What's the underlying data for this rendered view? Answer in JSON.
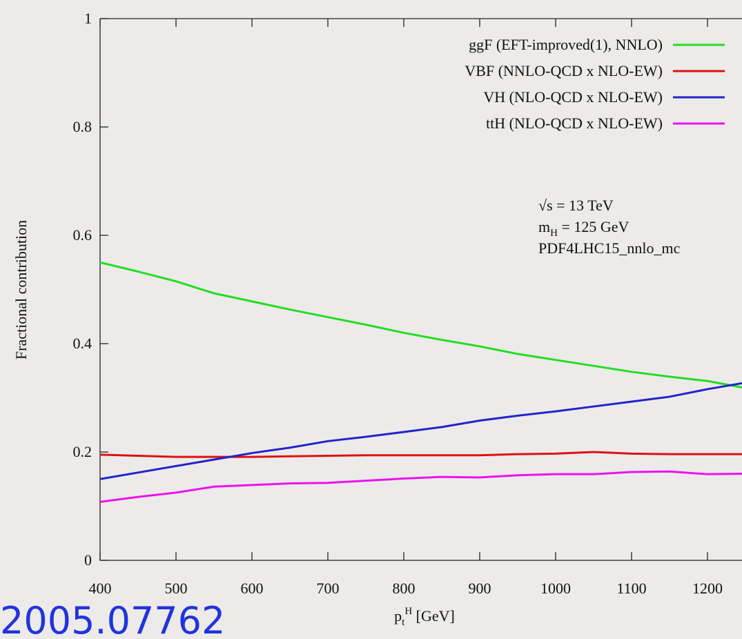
{
  "chart_data": {
    "type": "line",
    "x": [
      400,
      450,
      500,
      550,
      600,
      650,
      700,
      750,
      800,
      850,
      900,
      950,
      1000,
      1050,
      1100,
      1150,
      1200,
      1250
    ],
    "series": [
      {
        "name": "ggF (EFT-improved(1), NNLO)",
        "color": "#22dd22",
        "values": [
          0.55,
          0.533,
          0.515,
          0.493,
          0.478,
          0.463,
          0.449,
          0.435,
          0.42,
          0.407,
          0.395,
          0.381,
          0.37,
          0.359,
          0.348,
          0.339,
          0.331,
          0.318
        ]
      },
      {
        "name": "VBF (NNLO-QCD x NLO-EW)",
        "color": "#dd1111",
        "values": [
          0.195,
          0.193,
          0.191,
          0.191,
          0.191,
          0.192,
          0.193,
          0.194,
          0.194,
          0.194,
          0.194,
          0.196,
          0.197,
          0.2,
          0.197,
          0.196,
          0.196,
          0.196
        ]
      },
      {
        "name": "VH (NLO-QCD x NLO-EW)",
        "color": "#2222cc",
        "values": [
          0.15,
          0.162,
          0.174,
          0.186,
          0.198,
          0.208,
          0.22,
          0.228,
          0.237,
          0.246,
          0.258,
          0.267,
          0.275,
          0.284,
          0.293,
          0.302,
          0.316,
          0.328
        ]
      },
      {
        "name": "ttH (NLO-QCD x NLO-EW)",
        "color": "#ee11ee",
        "values": [
          0.108,
          0.117,
          0.125,
          0.136,
          0.139,
          0.142,
          0.143,
          0.147,
          0.151,
          0.154,
          0.153,
          0.157,
          0.159,
          0.159,
          0.163,
          0.164,
          0.159,
          0.16
        ]
      }
    ],
    "xlim": [
      400,
      1250
    ],
    "ylim": [
      0,
      1
    ],
    "xticks": [
      400,
      500,
      600,
      700,
      800,
      900,
      1000,
      1100,
      1200
    ],
    "yticks": [
      0,
      0.2,
      0.4,
      0.6,
      0.8,
      1
    ],
    "y_label": "Fractional contribution",
    "x_label": [
      "p",
      "t",
      "H",
      " [GeV]"
    ],
    "annotations": {
      "energy": "√s = 13 TeV",
      "mass": [
        "m",
        "H",
        " = 125 GeV"
      ],
      "pdf": "PDF4LHC15_nnlo_mc"
    },
    "reference": "2005.07762",
    "legend": "upper right"
  }
}
